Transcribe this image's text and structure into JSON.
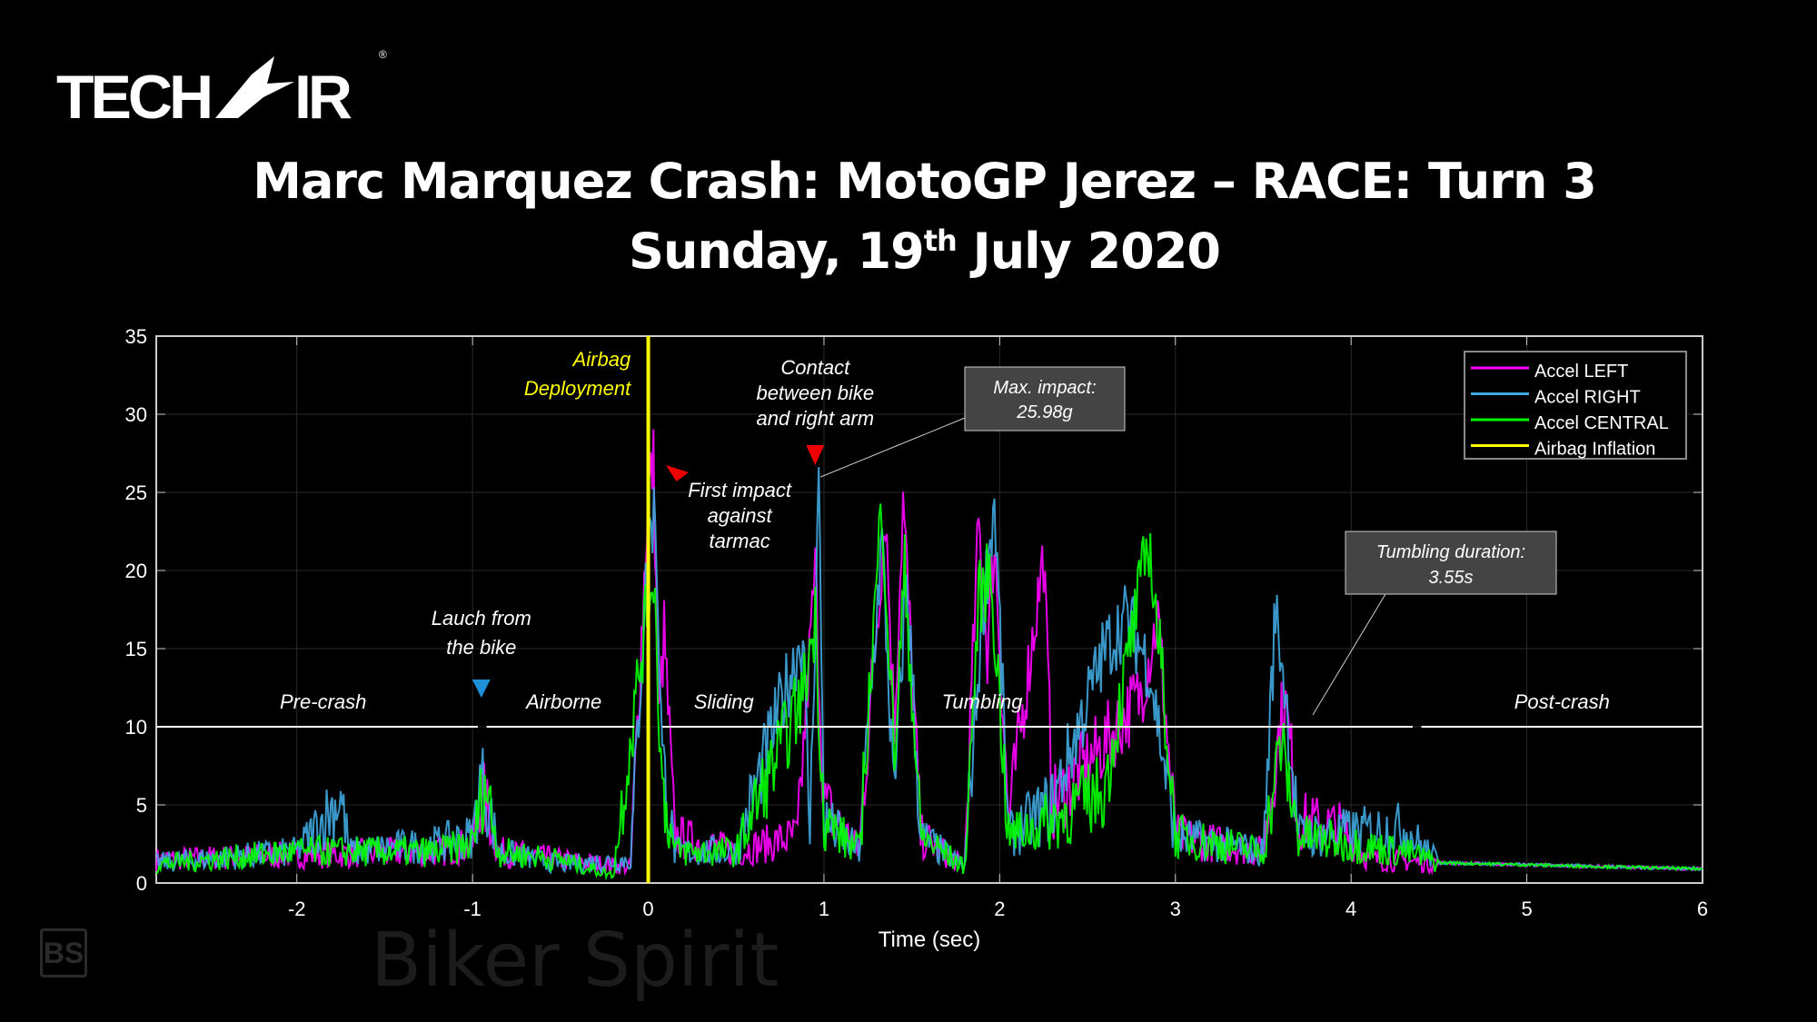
{
  "logo_text": "TECH-AIR",
  "title_line1": "Marc Marquez Crash: MotoGP Jerez – RACE: Turn 3",
  "title_line2_pre": "Sunday, 19",
  "title_line2_sup": "th",
  "title_line2_post": " July 2020",
  "watermark": "Biker Spirit",
  "watermark_badge": "BS",
  "chart_data": {
    "type": "line",
    "xlabel": "Time (sec)",
    "ylabel": "",
    "xlim": [
      -2.8,
      6
    ],
    "ylim": [
      0,
      35
    ],
    "xticks": [
      -2,
      -1,
      0,
      1,
      2,
      3,
      4,
      5,
      6
    ],
    "yticks": [
      0,
      5,
      10,
      15,
      20,
      25,
      30,
      35
    ],
    "grid": true,
    "legend_position": "top-right",
    "series": [
      {
        "name": "Accel LEFT",
        "color": "#ff00ff",
        "points": [
          [
            -2.8,
            1.5
          ],
          [
            -2,
            1.8
          ],
          [
            -1.2,
            2
          ],
          [
            -1,
            2.5
          ],
          [
            -0.95,
            6
          ],
          [
            -0.85,
            2
          ],
          [
            -0.5,
            1.5
          ],
          [
            -0.1,
            1
          ],
          [
            0,
            25
          ],
          [
            0.03,
            27
          ],
          [
            0.06,
            10
          ],
          [
            0.09,
            16
          ],
          [
            0.15,
            3
          ],
          [
            0.5,
            2
          ],
          [
            0.85,
            3
          ],
          [
            0.95,
            20
          ],
          [
            1.0,
            5
          ],
          [
            1.2,
            2
          ],
          [
            1.35,
            24
          ],
          [
            1.4,
            10
          ],
          [
            1.45,
            24.5
          ],
          [
            1.55,
            3
          ],
          [
            1.8,
            1
          ],
          [
            1.88,
            23
          ],
          [
            1.93,
            15
          ],
          [
            1.97,
            22
          ],
          [
            2.05,
            4
          ],
          [
            2.25,
            21
          ],
          [
            2.3,
            5
          ],
          [
            2.6,
            9
          ],
          [
            2.8,
            12
          ],
          [
            2.9,
            17
          ],
          [
            3.0,
            3
          ],
          [
            3.5,
            2
          ],
          [
            3.62,
            12
          ],
          [
            3.7,
            4
          ],
          [
            3.95,
            3.5
          ],
          [
            4.1,
            1.5
          ],
          [
            4.5,
            1.3
          ],
          [
            6,
            0.9
          ]
        ]
      },
      {
        "name": "Accel RIGHT",
        "color": "#3fa9df",
        "points": [
          [
            -2.8,
            1.3
          ],
          [
            -2,
            2
          ],
          [
            -1.75,
            5.5
          ],
          [
            -1.7,
            2
          ],
          [
            -1.2,
            2.5
          ],
          [
            -1,
            3
          ],
          [
            -0.95,
            7
          ],
          [
            -0.85,
            2
          ],
          [
            -0.5,
            1.2
          ],
          [
            -0.1,
            1.5
          ],
          [
            0,
            22
          ],
          [
            0.04,
            24
          ],
          [
            0.08,
            8
          ],
          [
            0.15,
            2
          ],
          [
            0.5,
            2
          ],
          [
            0.88,
            16
          ],
          [
            0.92,
            3
          ],
          [
            0.97,
            25.98
          ],
          [
            1.0,
            4
          ],
          [
            1.2,
            2
          ],
          [
            1.33,
            22
          ],
          [
            1.4,
            5
          ],
          [
            1.47,
            20
          ],
          [
            1.55,
            3
          ],
          [
            1.8,
            1
          ],
          [
            1.9,
            17
          ],
          [
            1.97,
            24.5
          ],
          [
            2.05,
            3
          ],
          [
            2.3,
            5
          ],
          [
            2.6,
            15
          ],
          [
            2.72,
            17
          ],
          [
            2.85,
            14
          ],
          [
            3.0,
            3
          ],
          [
            3.5,
            2
          ],
          [
            3.57,
            17.5
          ],
          [
            3.62,
            13
          ],
          [
            3.7,
            3
          ],
          [
            4.3,
            3.5
          ],
          [
            4.5,
            1.3
          ],
          [
            6,
            0.9
          ]
        ]
      },
      {
        "name": "Accel CENTRAL",
        "color": "#00ff00",
        "points": [
          [
            -2.8,
            1.2
          ],
          [
            -2,
            2
          ],
          [
            -1.2,
            2
          ],
          [
            -1,
            2.5
          ],
          [
            -0.93,
            6.5
          ],
          [
            -0.85,
            2
          ],
          [
            -0.5,
            1.5
          ],
          [
            -0.2,
            0.5
          ],
          [
            0,
            18
          ],
          [
            0.03,
            20
          ],
          [
            0.08,
            6
          ],
          [
            0.15,
            2
          ],
          [
            0.5,
            2
          ],
          [
            0.88,
            12
          ],
          [
            0.95,
            17
          ],
          [
            1.0,
            4
          ],
          [
            1.2,
            2
          ],
          [
            1.33,
            24.5
          ],
          [
            1.4,
            8
          ],
          [
            1.46,
            20
          ],
          [
            1.55,
            3
          ],
          [
            1.8,
            1
          ],
          [
            1.88,
            18
          ],
          [
            1.95,
            20
          ],
          [
            2.05,
            3
          ],
          [
            2.3,
            4
          ],
          [
            2.6,
            6
          ],
          [
            2.85,
            22
          ],
          [
            2.95,
            10
          ],
          [
            3.0,
            3
          ],
          [
            3.5,
            2
          ],
          [
            3.6,
            9
          ],
          [
            3.7,
            3
          ],
          [
            4.3,
            2
          ],
          [
            4.5,
            1.3
          ],
          [
            6,
            0.9
          ]
        ]
      },
      {
        "name": "Airbag Inflation",
        "color": "#ffff00",
        "vertical_at": 0
      }
    ],
    "phases": [
      {
        "label": "Pre-crash",
        "start": -2.8,
        "end": -0.97
      },
      {
        "label": "Airborne",
        "start": -0.92,
        "end": -0.08
      },
      {
        "label": "Sliding",
        "start": 0.08,
        "end": 0.8
      },
      {
        "label": "Tumbling",
        "start": 0.85,
        "end": 4.35
      },
      {
        "label": "Post-crash",
        "start": 4.4,
        "end": 6
      }
    ],
    "phase_level": 10,
    "annotations": {
      "airbag": "Airbag Deployment",
      "launch": "Lauch from the bike",
      "first_impact": "First impact against tarmac",
      "contact": "Contact between bike and right arm",
      "max_impact_l1": "Max. impact:",
      "max_impact_l2": "25.98g",
      "tumbling_l1": "Tumbling duration:",
      "tumbling_l2": "3.55s"
    }
  }
}
